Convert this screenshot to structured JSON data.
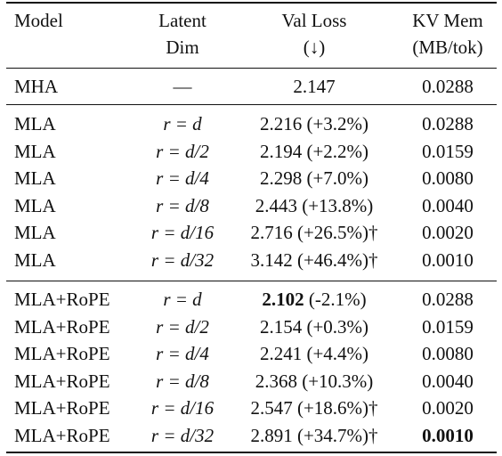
{
  "header": {
    "model": "Model",
    "latent_line1": "Latent",
    "latent_line2": "Dim",
    "loss_line1": "Val Loss",
    "loss_line2": "(↓)",
    "kv_line1": "KV Mem",
    "kv_line2": "(MB/tok)"
  },
  "baseline": {
    "model": "MHA",
    "latent": "—",
    "loss": "2.147",
    "loss_change": "",
    "kv": "0.0288"
  },
  "mla_rows": [
    {
      "model": "MLA",
      "latent": "r = d",
      "loss": "2.216",
      "loss_change": " (+3.2%)",
      "kv": "0.0288"
    },
    {
      "model": "MLA",
      "latent": "r = d/2",
      "loss": "2.194",
      "loss_change": " (+2.2%)",
      "kv": "0.0159"
    },
    {
      "model": "MLA",
      "latent": "r = d/4",
      "loss": "2.298",
      "loss_change": " (+7.0%)",
      "kv": "0.0080"
    },
    {
      "model": "MLA",
      "latent": "r = d/8",
      "loss": "2.443",
      "loss_change": " (+13.8%)",
      "kv": "0.0040"
    },
    {
      "model": "MLA",
      "latent": "r = d/16",
      "loss": "2.716",
      "loss_change": " (+26.5%)†",
      "kv": "0.0020"
    },
    {
      "model": "MLA",
      "latent": "r = d/32",
      "loss": "3.142",
      "loss_change": " (+46.4%)†",
      "kv": "0.0010"
    }
  ],
  "rope_rows": [
    {
      "model": "MLA+RoPE",
      "latent": "r = d",
      "loss": "2.102",
      "loss_change": " (-2.1%)",
      "kv": "0.0288",
      "loss_bold": true
    },
    {
      "model": "MLA+RoPE",
      "latent": "r = d/2",
      "loss": "2.154",
      "loss_change": " (+0.3%)",
      "kv": "0.0159"
    },
    {
      "model": "MLA+RoPE",
      "latent": "r = d/4",
      "loss": "2.241",
      "loss_change": " (+4.4%)",
      "kv": "0.0080"
    },
    {
      "model": "MLA+RoPE",
      "latent": "r = d/8",
      "loss": "2.368",
      "loss_change": " (+10.3%)",
      "kv": "0.0040"
    },
    {
      "model": "MLA+RoPE",
      "latent": "r = d/16",
      "loss": "2.547",
      "loss_change": " (+18.6%)†",
      "kv": "0.0020"
    },
    {
      "model": "MLA+RoPE",
      "latent": "r = d/32",
      "loss": "2.891",
      "loss_change": " (+34.7%)†",
      "kv": "0.0010",
      "kv_bold": true
    }
  ]
}
